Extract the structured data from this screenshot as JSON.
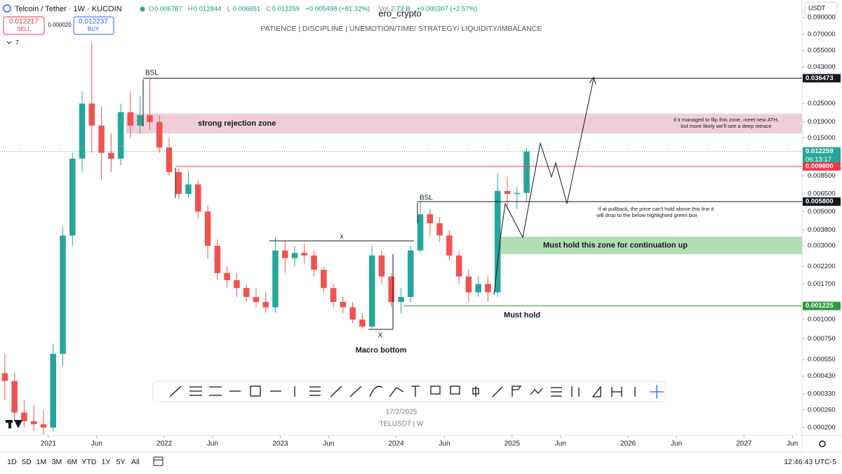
{
  "header": {
    "symbol": "Telcoin / Tether · 1W · KUCOIN",
    "ohlc": [
      {
        "key": "O",
        "value": "0.006787"
      },
      {
        "key": "H",
        "value": "0.012844"
      },
      {
        "key": "L",
        "value": "0.006651"
      },
      {
        "key": "C",
        "value": "0.012259"
      }
    ],
    "change": "+0.005498 (+81.32%)",
    "volume": {
      "key": "Vol",
      "value": "2.73 B"
    },
    "volume_change": "+0.000307 (+2.57%)",
    "author": "ero_crypto",
    "subtitle": "PATIENCE  |  DISCIPLINE  |  UNEMOTION/TIME/ STRATEGY/ LIQUIDITY/IMBALANCE",
    "sell": {
      "price": "0.012217",
      "label": "SELL"
    },
    "spread": "0.000020",
    "buy": {
      "price": "0.012237",
      "label": "BUY"
    },
    "indicators_count": "7",
    "currency": "USDT"
  },
  "chart_data": {
    "type": "candlestick",
    "log_scale": true,
    "grid": false,
    "up_color": "#26a69a",
    "down_color": "#ef5350",
    "x": [
      "2020-08",
      "2020-09",
      "2020-10",
      "2020-11",
      "2020-12",
      "2021-01",
      "2021-02",
      "2021-03",
      "2021-04",
      "2021-05",
      "2021-06",
      "2021-07",
      "2021-08",
      "2021-09",
      "2021-10",
      "2021-11",
      "2021-12",
      "2022-01",
      "2022-02",
      "2022-03",
      "2022-04",
      "2022-05",
      "2022-06",
      "2022-07",
      "2022-08",
      "2022-09",
      "2022-10",
      "2022-11",
      "2022-12",
      "2023-01",
      "2023-02",
      "2023-03",
      "2023-04",
      "2023-05",
      "2023-06",
      "2023-07",
      "2023-08",
      "2023-09",
      "2023-10",
      "2023-11",
      "2023-12",
      "2024-01",
      "2024-02",
      "2024-03",
      "2024-04",
      "2024-05",
      "2024-06",
      "2024-07",
      "2024-08",
      "2024-09",
      "2024-10",
      "2024-11",
      "2024-12",
      "2025-01",
      "2025-02"
    ],
    "open": [
      0.00045,
      0.0004,
      0.00025,
      0.00022,
      0.00021,
      0.0002,
      0.0006,
      0.0035,
      0.011,
      0.025,
      0.018,
      0.012,
      0.011,
      0.022,
      0.018,
      0.021,
      0.019,
      0.013,
      0.009,
      0.0065,
      0.0075,
      0.005,
      0.003,
      0.002,
      0.0018,
      0.0016,
      0.0014,
      0.0013,
      0.0012,
      0.0028,
      0.0025,
      0.0027,
      0.0026,
      0.0021,
      0.0016,
      0.0013,
      0.0012,
      0.001,
      0.0009,
      0.0026,
      0.0019,
      0.0013,
      0.0014,
      0.0028,
      0.0048,
      0.0042,
      0.0035,
      0.0026,
      0.0019,
      0.0015,
      0.0017,
      0.0015,
      0.0068,
      0.0065,
      0.0066
    ],
    "high": [
      0.0006,
      0.00045,
      0.0003,
      0.00028,
      0.00026,
      0.0007,
      0.004,
      0.012,
      0.03,
      0.062,
      0.024,
      0.016,
      0.025,
      0.03,
      0.028,
      0.036,
      0.021,
      0.015,
      0.0095,
      0.0092,
      0.008,
      0.0055,
      0.0033,
      0.0022,
      0.002,
      0.0017,
      0.0016,
      0.0015,
      0.0034,
      0.0032,
      0.003,
      0.0031,
      0.0028,
      0.0022,
      0.0017,
      0.0014,
      0.0013,
      0.0011,
      0.003,
      0.0028,
      0.002,
      0.0016,
      0.003,
      0.0058,
      0.0052,
      0.0046,
      0.0038,
      0.0028,
      0.0021,
      0.0019,
      0.0019,
      0.0088,
      0.0084,
      0.0072,
      0.012844
    ],
    "low": [
      0.0003,
      0.00022,
      0.0002,
      0.00019,
      0.00018,
      0.00019,
      0.0005,
      0.003,
      0.009,
      0.012,
      0.008,
      0.009,
      0.01,
      0.015,
      0.016,
      0.017,
      0.012,
      0.0085,
      0.006,
      0.0062,
      0.0045,
      0.0025,
      0.0018,
      0.0016,
      0.0014,
      0.0013,
      0.0012,
      0.0011,
      0.0011,
      0.002,
      0.0022,
      0.0023,
      0.0019,
      0.0015,
      0.0012,
      0.0011,
      0.00095,
      0.00088,
      0.00088,
      0.0017,
      0.0012,
      0.0011,
      0.0013,
      0.0027,
      0.0035,
      0.0032,
      0.0024,
      0.0017,
      0.0013,
      0.0014,
      0.0013,
      0.0014,
      0.0052,
      0.0052,
      0.0058
    ],
    "close": [
      0.0004,
      0.00025,
      0.00022,
      0.00021,
      0.0002,
      0.0006,
      0.0035,
      0.011,
      0.025,
      0.018,
      0.012,
      0.011,
      0.022,
      0.018,
      0.021,
      0.019,
      0.013,
      0.009,
      0.0065,
      0.0075,
      0.005,
      0.003,
      0.002,
      0.0018,
      0.0016,
      0.0014,
      0.0013,
      0.0012,
      0.0028,
      0.0025,
      0.0027,
      0.0026,
      0.0021,
      0.0016,
      0.0013,
      0.0012,
      0.001,
      0.0009,
      0.0026,
      0.0019,
      0.0013,
      0.0014,
      0.0028,
      0.0048,
      0.0042,
      0.0035,
      0.0026,
      0.0019,
      0.0015,
      0.0017,
      0.0015,
      0.0068,
      0.0065,
      0.0066,
      0.012259
    ],
    "xlim": [
      "2020-08",
      "2027-07"
    ],
    "xticks": [
      {
        "value": "2021-01",
        "label": "2021"
      },
      {
        "value": "2021-06",
        "label": "Jun"
      },
      {
        "value": "2022-01",
        "label": "2022"
      },
      {
        "value": "2022-06",
        "label": "Jun"
      },
      {
        "value": "2023-01",
        "label": "2023"
      },
      {
        "value": "2023-06",
        "label": "Jun"
      },
      {
        "value": "2024-01",
        "label": "2024"
      },
      {
        "value": "2024-06",
        "label": "Jun"
      },
      {
        "value": "2025-01",
        "label": "2025"
      },
      {
        "value": "2025-06",
        "label": "Jun"
      },
      {
        "value": "2026-01",
        "label": "2026"
      },
      {
        "value": "2026-06",
        "label": "Jun"
      },
      {
        "value": "2027-01",
        "label": "2027"
      },
      {
        "value": "2027-06",
        "label": "Jun"
      }
    ],
    "ylim": [
      0.000178,
      0.117
    ],
    "yticks": [
      {
        "value": 0.09,
        "label": "0.090000"
      },
      {
        "value": 0.07,
        "label": "0.070000"
      },
      {
        "value": 0.055,
        "label": "0.055000"
      },
      {
        "value": 0.043,
        "label": "0.043000"
      },
      {
        "value": 0.025,
        "label": "0.025000"
      },
      {
        "value": 0.019,
        "label": "0.019000"
      },
      {
        "value": 0.015,
        "label": "0.015000"
      },
      {
        "value": 0.0085,
        "label": "0.008500"
      },
      {
        "value": 0.0065,
        "label": "0.006500"
      },
      {
        "value": 0.005,
        "label": "0.005000"
      },
      {
        "value": 0.0038,
        "label": "0.003800"
      },
      {
        "value": 0.003,
        "label": "0.003000"
      },
      {
        "value": 0.0022,
        "label": "0.002200"
      },
      {
        "value": 0.0017,
        "label": "0.001700"
      },
      {
        "value": 0.001,
        "label": "0.001000"
      },
      {
        "value": 0.00075,
        "label": "0.000750"
      },
      {
        "value": 0.00055,
        "label": "0.000550"
      },
      {
        "value": 0.00043,
        "label": "0.000430"
      },
      {
        "value": 0.00033,
        "label": "0.000330"
      },
      {
        "value": 0.00026,
        "label": "0.000260"
      },
      {
        "value": 0.0002,
        "label": "0.000200"
      }
    ],
    "price_lines": [
      {
        "value": 0.036473,
        "label": "0.036473",
        "color": "#131722"
      },
      {
        "value": 0.012259,
        "label": "0.012259",
        "color": "#26a69a"
      },
      {
        "value": 0.0098,
        "label": "0.009800",
        "color": "#f23645"
      },
      {
        "value": 0.0058,
        "label": "0.005800",
        "color": "#131722"
      },
      {
        "value": 0.001225,
        "label": "0.001225",
        "color": "#2e9a3a"
      }
    ],
    "countdown": "06:13:17",
    "zones": [
      {
        "low": 0.016,
        "high": 0.0215,
        "label": "strong rejection zone",
        "color": "#e8b4c4"
      },
      {
        "low": 0.00265,
        "high": 0.00344,
        "label": "Must hold this zone for continuation up",
        "color": "#a5d6a7"
      }
    ],
    "annotations": {
      "bsl_1": "BSL",
      "bsl_2": "BSL",
      "x_top": "x",
      "x_bottom": "X",
      "macro_bottom": "Macro bottom",
      "must_hold": "Must hold",
      "flip_note": [
        "if it managed to flip this zone, meet new ATH,",
        "but more likely we'll see a deep retrace"
      ],
      "pullback_note": [
        "if at pullback, the price can't hold above this line it",
        "will drop to the below highlighted green box"
      ]
    }
  },
  "footer": {
    "date": "17/2/2025",
    "ticker": "TELUSDT  |  W",
    "ranges": [
      "1D",
      "5D",
      "1M",
      "3M",
      "6M",
      "YTD",
      "1Y",
      "5Y",
      "All"
    ],
    "clock": "12:46:43 UTC-5"
  }
}
